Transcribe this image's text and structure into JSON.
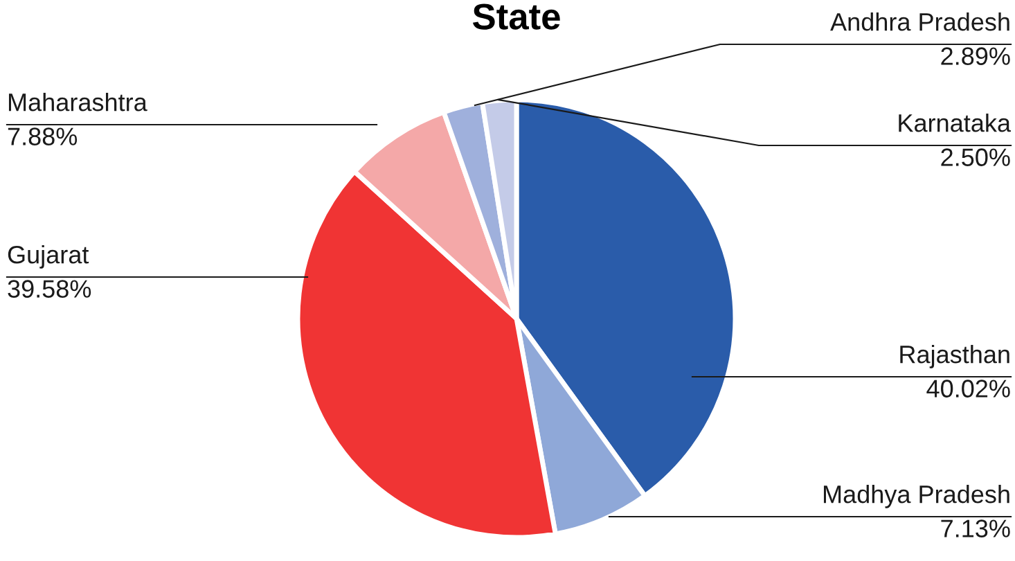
{
  "chart_data": {
    "type": "pie",
    "title": "State",
    "categories": [
      "Rajasthan",
      "Madhya Pradesh",
      "Gujarat",
      "Maharashtra",
      "Andhra Pradesh",
      "Karnataka"
    ],
    "values": [
      40.02,
      7.13,
      39.58,
      7.88,
      2.89,
      2.5
    ],
    "value_labels": [
      "40.02%",
      "7.13%",
      "39.58%",
      "7.88%",
      "2.89%",
      "2.50%"
    ],
    "colors": [
      "#2a5caa",
      "#8fa8d8",
      "#f03434",
      "#f4a8a8",
      "#9fb0dc",
      "#c4cbe8"
    ],
    "legend": false
  }
}
